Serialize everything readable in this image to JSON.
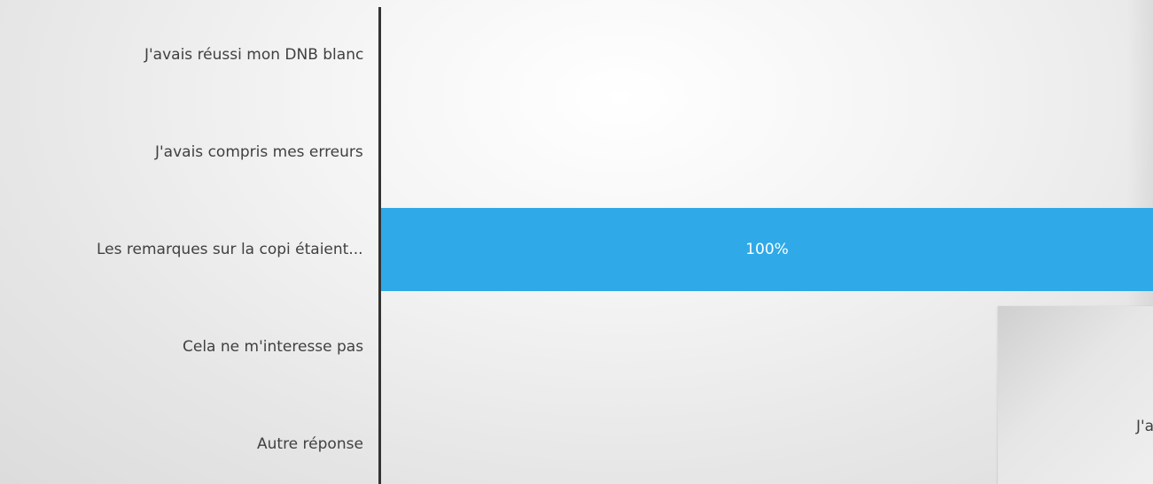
{
  "chart_data": {
    "type": "bar",
    "orientation": "horizontal",
    "categories": [
      "J'avais réussi mon DNB blanc",
      "J'avais compris mes erreurs",
      "Les remarques sur la copi étaient...",
      "Cela ne m'interesse pas",
      "Autre réponse"
    ],
    "values": [
      0,
      0,
      100,
      0,
      0
    ],
    "value_labels": [
      "",
      "",
      "100%",
      "",
      ""
    ],
    "xlim": [
      0,
      100
    ],
    "bar_color": "#2FA9E8",
    "axis_color": "#333333",
    "grid": false,
    "legend": "none"
  },
  "overlay": {
    "partial_text": "J'a"
  }
}
